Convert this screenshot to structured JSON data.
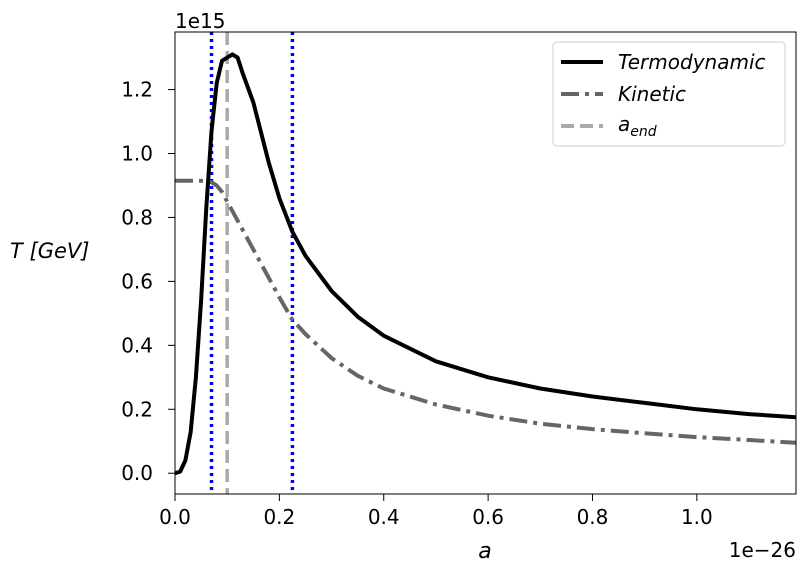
{
  "chart_data": {
    "type": "line",
    "title": "",
    "xlabel": "a",
    "ylabel": "T [GeV]",
    "x_offset_text": "1e−26",
    "y_offset_text": "1e15",
    "x_scale": 1e-26,
    "y_scale": 1000000000000000.0,
    "xlim": [
      0.0,
      1.19
    ],
    "ylim": [
      -0.065,
      1.38
    ],
    "x_ticks": [
      {
        "value": 0.0,
        "label": "0.0"
      },
      {
        "value": 0.2,
        "label": "0.2"
      },
      {
        "value": 0.4,
        "label": "0.4"
      },
      {
        "value": 0.6,
        "label": "0.6"
      },
      {
        "value": 0.8,
        "label": "0.8"
      },
      {
        "value": 1.0,
        "label": "1.0"
      }
    ],
    "y_ticks": [
      {
        "value": 0.0,
        "label": "0.0"
      },
      {
        "value": 0.2,
        "label": "0.2"
      },
      {
        "value": 0.4,
        "label": "0.4"
      },
      {
        "value": 0.6,
        "label": "0.6"
      },
      {
        "value": 0.8,
        "label": "0.8"
      },
      {
        "value": 1.0,
        "label": "1.0"
      },
      {
        "value": 1.2,
        "label": "1.2"
      }
    ],
    "grid": false,
    "legend_position": "top-right",
    "series": [
      {
        "name": "Termodynamic",
        "legend_label": "Termodynamic",
        "color": "#000000",
        "dash": "solid",
        "x": [
          0.0,
          0.01,
          0.02,
          0.03,
          0.04,
          0.05,
          0.06,
          0.07,
          0.08,
          0.09,
          0.1,
          0.11,
          0.12,
          0.13,
          0.15,
          0.18,
          0.2,
          0.225,
          0.25,
          0.3,
          0.35,
          0.4,
          0.5,
          0.6,
          0.7,
          0.8,
          0.9,
          1.0,
          1.1,
          1.19
        ],
        "y": [
          0.0,
          0.005,
          0.04,
          0.13,
          0.3,
          0.54,
          0.83,
          1.07,
          1.22,
          1.29,
          1.3,
          1.31,
          1.3,
          1.25,
          1.16,
          0.97,
          0.86,
          0.755,
          0.68,
          0.57,
          0.49,
          0.43,
          0.35,
          0.3,
          0.265,
          0.24,
          0.22,
          0.2,
          0.185,
          0.175
        ]
      },
      {
        "name": "Kinetic",
        "legend_label": "Kinetic",
        "color": "#666666",
        "dash": "dashdot",
        "x": [
          0.0,
          0.02,
          0.04,
          0.06,
          0.07,
          0.08,
          0.09,
          0.1,
          0.12,
          0.15,
          0.2,
          0.225,
          0.25,
          0.3,
          0.35,
          0.4,
          0.5,
          0.6,
          0.7,
          0.8,
          0.9,
          1.0,
          1.1,
          1.19
        ],
        "y": [
          0.915,
          0.915,
          0.915,
          0.914,
          0.91,
          0.9,
          0.88,
          0.85,
          0.79,
          0.7,
          0.55,
          0.48,
          0.435,
          0.36,
          0.305,
          0.265,
          0.215,
          0.18,
          0.155,
          0.138,
          0.125,
          0.113,
          0.104,
          0.095
        ]
      }
    ],
    "vertical_lines": [
      {
        "name": "a_end",
        "legend_label": "a",
        "legend_subscript": "end",
        "x": 0.1,
        "color": "#aaaaaa",
        "dash": "dashed",
        "in_legend": true
      },
      {
        "name": "blue-dotted-1",
        "x": 0.07,
        "color": "#0000ff",
        "dash": "dotted",
        "in_legend": false
      },
      {
        "name": "blue-dotted-2",
        "x": 0.225,
        "color": "#0000ff",
        "dash": "dotted",
        "in_legend": false
      }
    ]
  }
}
